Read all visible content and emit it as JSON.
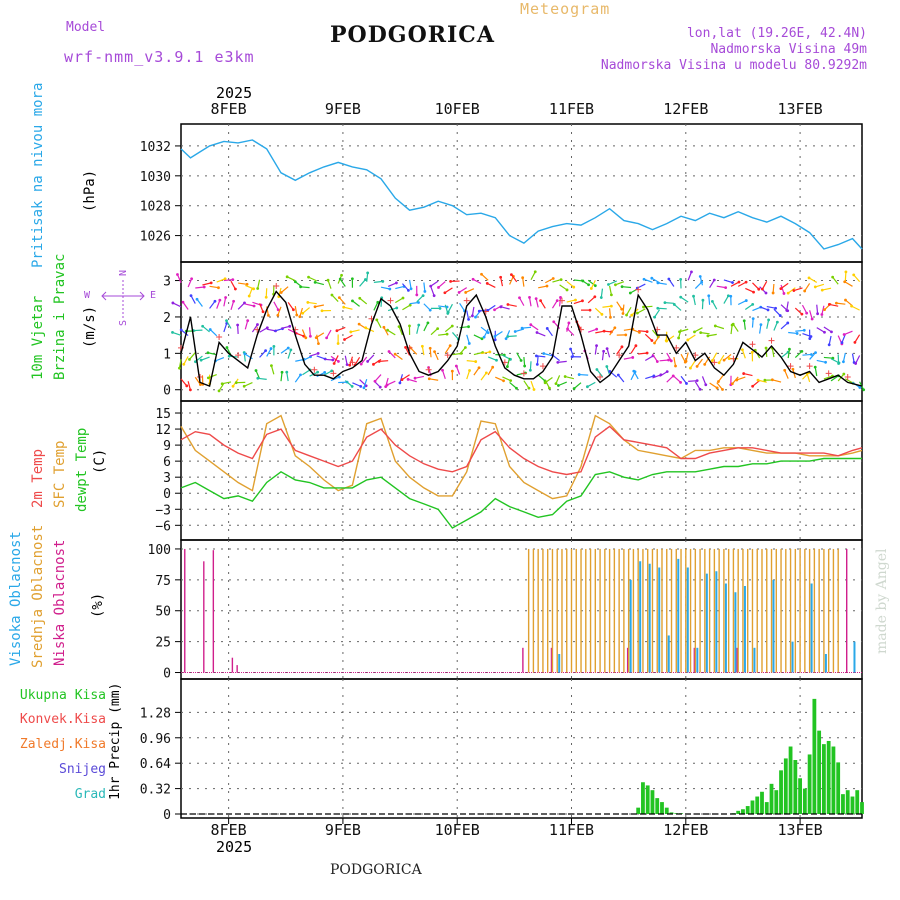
{
  "header": {
    "model_label": "Model",
    "model_name": "wrf-nmm_v3.9.1 e3km",
    "city": "PODGORICA",
    "meteogram": "Meteogram",
    "lonlat": "lon,lat (19.26E, 42.4N)",
    "altitude": "Nadmorska Visina 49m",
    "model_altitude": "Nadmorska Visina u modelu 80.9292m",
    "footer_city": "PODGORICA",
    "watermark": "made by Angel"
  },
  "colors": {
    "pressure": "#2aa8e8",
    "temp2m": "#ee4a4a",
    "sfc": "#e0a030",
    "dewpt": "#22c422",
    "high": "#2aa8e8",
    "mid": "#e0a030",
    "low": "#d01f8c",
    "precip": "#22c422",
    "purple": "#a64ad8",
    "grid": "#666666"
  },
  "time_axis": {
    "year": "2025",
    "days": [
      "8FEB",
      "9FEB",
      "10FEB",
      "11FEB",
      "12FEB",
      "13FEB"
    ]
  },
  "chart_data": [
    {
      "type": "line",
      "name": "pressure",
      "title": "Pritisak na nivou mora",
      "ylabel": "(hPa)",
      "ylim": [
        1024.5,
        1033.2
      ],
      "yticks": [
        1026,
        1028,
        1030,
        1032
      ],
      "series": [
        {
          "name": "Pritisak",
          "color": "#2aa8e8",
          "x": [
            0,
            2,
            4,
            6,
            9,
            12,
            15,
            18,
            21,
            24,
            27,
            30,
            33,
            36,
            39,
            42,
            45,
            48,
            51,
            54,
            57,
            60,
            63,
            66,
            69,
            72,
            75,
            78,
            81,
            84,
            87,
            90,
            93,
            96,
            99,
            102,
            105,
            108,
            111,
            114,
            117,
            120,
            123,
            126,
            129,
            132,
            135,
            138,
            141,
            143
          ],
          "values": [
            1031.8,
            1031.2,
            1031.6,
            1032.0,
            1032.3,
            1032.2,
            1032.4,
            1031.8,
            1030.2,
            1029.7,
            1030.2,
            1030.6,
            1030.9,
            1030.6,
            1030.4,
            1029.8,
            1028.5,
            1027.7,
            1027.9,
            1028.3,
            1028.0,
            1027.4,
            1027.5,
            1027.2,
            1026.0,
            1025.5,
            1026.3,
            1026.6,
            1026.8,
            1026.7,
            1027.2,
            1027.8,
            1027.0,
            1026.8,
            1026.4,
            1026.8,
            1027.3,
            1027.0,
            1027.5,
            1027.2,
            1027.6,
            1027.2,
            1026.9,
            1027.3,
            1026.8,
            1026.2,
            1025.1,
            1025.4,
            1025.8,
            1025.1
          ]
        }
      ]
    },
    {
      "type": "line",
      "name": "wind",
      "title": "10m Vjetar Brzina i Pravac",
      "title_lines": [
        "10m Vjetar",
        "Brzina i Pravac"
      ],
      "ylabel": "(m/s)",
      "compass": [
        "N",
        "W",
        "E",
        "S"
      ],
      "ylim": [
        -0.2,
        3.4
      ],
      "yticks": [
        0,
        1,
        2,
        3
      ],
      "series": [
        {
          "name": "Brzina",
          "color": "#000000",
          "x": [
            0,
            2,
            4,
            6,
            8,
            10,
            12,
            14,
            16,
            18,
            20,
            22,
            24,
            26,
            28,
            30,
            32,
            34,
            36,
            38,
            40,
            42,
            44,
            46,
            48,
            50,
            52,
            54,
            56,
            58,
            60,
            62,
            64,
            66,
            68,
            70,
            72,
            74,
            76,
            78,
            80,
            82,
            84,
            86,
            88,
            90,
            92,
            94,
            96,
            98,
            100,
            102,
            104,
            106,
            108,
            110,
            112,
            114,
            116,
            118,
            120,
            122,
            124,
            126,
            128,
            130,
            132,
            134,
            136,
            138,
            140,
            143
          ],
          "values": [
            1.0,
            2.0,
            0.2,
            0.1,
            1.3,
            1.0,
            0.8,
            0.6,
            1.5,
            2.2,
            2.7,
            2.4,
            1.5,
            0.7,
            0.4,
            0.4,
            0.3,
            0.5,
            0.6,
            0.8,
            1.8,
            2.5,
            2.3,
            1.8,
            1.0,
            0.5,
            0.4,
            0.5,
            0.8,
            1.2,
            2.3,
            2.6,
            2.0,
            1.2,
            0.6,
            0.4,
            0.3,
            0.3,
            0.5,
            0.9,
            2.3,
            2.3,
            1.5,
            0.5,
            0.2,
            0.4,
            0.8,
            1.2,
            2.6,
            2.2,
            1.5,
            1.5,
            1.0,
            1.3,
            0.8,
            1.0,
            0.6,
            0.4,
            0.7,
            1.3,
            1.1,
            0.9,
            1.2,
            0.9,
            0.5,
            0.4,
            0.5,
            0.2,
            0.3,
            0.4,
            0.2,
            0.1
          ]
        }
      ]
    },
    {
      "type": "line",
      "name": "temperature",
      "title_lines": [
        "2m Temp",
        "SFC Temp",
        "dewpt Temp"
      ],
      "ylabel": "(C)",
      "ylim": [
        -8.0,
        16.5
      ],
      "yticks": [
        -6,
        -3,
        0,
        3,
        6,
        9,
        12,
        15
      ],
      "series": [
        {
          "name": "2m Temp",
          "color": "#ee4a4a",
          "x": [
            0,
            3,
            6,
            9,
            12,
            15,
            18,
            21,
            24,
            27,
            30,
            33,
            36,
            39,
            42,
            45,
            48,
            51,
            54,
            57,
            60,
            63,
            66,
            69,
            72,
            75,
            78,
            81,
            84,
            87,
            90,
            93,
            96,
            99,
            102,
            105,
            108,
            111,
            114,
            117,
            120,
            123,
            126,
            129,
            132,
            135,
            138,
            141,
            143
          ],
          "values": [
            10.0,
            11.5,
            11.0,
            9.0,
            7.5,
            6.5,
            11.0,
            12.0,
            8.0,
            7.0,
            6.0,
            5.0,
            6.0,
            10.5,
            12.0,
            9.0,
            7.0,
            5.5,
            4.5,
            4.0,
            5.0,
            10.0,
            11.5,
            8.5,
            6.5,
            5.0,
            4.0,
            3.5,
            4.0,
            10.5,
            12.5,
            10.0,
            9.5,
            9.0,
            8.5,
            6.5,
            6.5,
            7.5,
            8.0,
            8.5,
            8.5,
            8.0,
            7.5,
            7.5,
            7.5,
            7.5,
            7.0,
            8.0,
            8.5
          ]
        },
        {
          "name": "SFC Temp",
          "color": "#e0a030",
          "x": [
            0,
            3,
            6,
            9,
            12,
            15,
            18,
            21,
            24,
            27,
            30,
            33,
            36,
            39,
            42,
            45,
            48,
            51,
            54,
            57,
            60,
            63,
            66,
            69,
            72,
            75,
            78,
            81,
            84,
            87,
            90,
            93,
            96,
            99,
            102,
            105,
            108,
            111,
            114,
            117,
            120,
            123,
            126,
            129,
            132,
            135,
            138,
            141,
            143
          ],
          "values": [
            12.5,
            8.0,
            6.0,
            4.0,
            2.0,
            0.5,
            13.0,
            14.5,
            7.0,
            5.0,
            2.5,
            0.5,
            1.5,
            13.0,
            14.0,
            6.0,
            3.0,
            1.0,
            -0.5,
            -0.5,
            4.0,
            13.5,
            13.0,
            5.0,
            2.0,
            0.5,
            -1.0,
            -0.5,
            5.0,
            14.5,
            13.0,
            10.0,
            8.0,
            7.5,
            7.0,
            6.5,
            8.0,
            8.0,
            8.5,
            8.5,
            8.0,
            7.5,
            7.5,
            7.5,
            7.0,
            7.0,
            7.0,
            7.5,
            8.0
          ]
        },
        {
          "name": "dewpt Temp",
          "color": "#22c422",
          "x": [
            0,
            3,
            6,
            9,
            12,
            15,
            18,
            21,
            24,
            27,
            30,
            33,
            36,
            39,
            42,
            45,
            48,
            51,
            54,
            57,
            60,
            63,
            66,
            69,
            72,
            75,
            78,
            81,
            84,
            87,
            90,
            93,
            96,
            99,
            102,
            105,
            108,
            111,
            114,
            117,
            120,
            123,
            126,
            129,
            132,
            135,
            138,
            141,
            143
          ],
          "values": [
            1.0,
            2.0,
            0.5,
            -1.0,
            -0.5,
            -1.5,
            2.0,
            4.0,
            2.5,
            2.0,
            1.0,
            1.0,
            1.0,
            2.5,
            3.0,
            1.0,
            -1.0,
            -2.0,
            -3.0,
            -6.5,
            -5.0,
            -3.5,
            -1.0,
            -2.5,
            -3.5,
            -4.5,
            -4.0,
            -1.5,
            -0.5,
            3.5,
            4.0,
            3.0,
            2.5,
            3.5,
            4.0,
            4.0,
            4.0,
            4.5,
            5.0,
            5.0,
            5.5,
            5.5,
            6.0,
            6.0,
            6.0,
            6.5,
            6.5,
            6.5,
            6.5
          ]
        }
      ]
    },
    {
      "type": "bar",
      "name": "cloud",
      "title_lines": [
        "Visoka Oblacnost",
        "Srednja Oblacnost",
        "Niska Oblacnost"
      ],
      "ylabel": "(%)",
      "ylim": [
        -2,
        104
      ],
      "yticks": [
        0,
        25,
        50,
        75,
        100
      ],
      "series": [
        {
          "name": "Niska",
          "color": "#d01f8c",
          "x": [
            1,
            5,
            7,
            11,
            12,
            72,
            78,
            94,
            108,
            117,
            140
          ],
          "values": [
            100,
            90,
            99,
            12,
            6,
            20,
            20,
            20,
            20,
            20,
            100
          ]
        },
        {
          "name": "Srednja",
          "color": "#e0a030",
          "x": [
            73,
            74,
            75,
            76,
            77,
            78,
            79,
            80,
            81,
            82,
            83,
            84,
            85,
            86,
            87,
            88,
            89,
            90,
            91,
            92,
            93,
            94,
            95,
            96,
            97,
            98,
            99,
            100,
            101,
            102,
            103,
            104,
            105,
            106,
            107,
            108,
            109,
            110,
            111,
            112,
            113,
            114,
            115,
            116,
            117,
            118,
            119,
            120,
            121,
            122,
            123,
            124,
            125,
            126,
            127,
            128,
            129,
            130,
            131,
            132,
            133,
            134,
            135,
            136,
            137,
            138
          ],
          "values": [
            100,
            100,
            100,
            100,
            100,
            100,
            100,
            100,
            100,
            100,
            100,
            100,
            100,
            100,
            100,
            100,
            100,
            100,
            100,
            100,
            100,
            100,
            100,
            100,
            100,
            100,
            100,
            100,
            100,
            100,
            100,
            100,
            100,
            100,
            100,
            100,
            100,
            100,
            100,
            100,
            100,
            100,
            100,
            100,
            100,
            100,
            100,
            100,
            100,
            100,
            100,
            100,
            100,
            100,
            100,
            100,
            100,
            100,
            100,
            100,
            100,
            100,
            100,
            100,
            100,
            100
          ]
        },
        {
          "name": "Visoka",
          "color": "#2aa8e8",
          "x": [
            79,
            94,
            96,
            98,
            100,
            102,
            104,
            106,
            108,
            110,
            112,
            114,
            116,
            118,
            120,
            124,
            128,
            132,
            135,
            141
          ],
          "values": [
            15,
            75,
            90,
            88,
            85,
            30,
            92,
            85,
            20,
            80,
            82,
            72,
            65,
            70,
            20,
            75,
            25,
            72,
            15,
            25
          ]
        }
      ]
    },
    {
      "type": "bar",
      "name": "precip",
      "ylabel": "1hr Precip (mm)",
      "legend": [
        "Ukupna Kisa",
        "Konvek.Kisa",
        "Zaledj.Kisa",
        "Snijeg",
        "Grad"
      ],
      "legend_colors": [
        "#22c422",
        "#ee4a4a",
        "#f07a2a",
        "#5a4ad8",
        "#2ab8b8"
      ],
      "ylim": [
        0,
        1.65
      ],
      "yticks": [
        0,
        0.32,
        0.64,
        0.96,
        1.28
      ],
      "series": [
        {
          "name": "Ukupna Kisa",
          "color": "#22c422",
          "x": [
            96,
            97,
            98,
            99,
            100,
            101,
            102,
            103,
            104,
            105,
            116,
            117,
            118,
            119,
            120,
            121,
            122,
            123,
            124,
            125,
            126,
            127,
            128,
            129,
            130,
            131,
            132,
            133,
            134,
            135,
            136,
            137,
            138,
            139,
            140,
            141,
            142,
            143
          ],
          "values": [
            0.08,
            0.4,
            0.36,
            0.3,
            0.2,
            0.15,
            0.08,
            0.02,
            0.01,
            0.01,
            0.01,
            0.04,
            0.06,
            0.1,
            0.17,
            0.22,
            0.28,
            0.15,
            0.38,
            0.3,
            0.55,
            0.7,
            0.85,
            0.68,
            0.45,
            0.32,
            0.75,
            1.45,
            1.05,
            0.88,
            0.92,
            0.85,
            0.65,
            0.25,
            0.3,
            0.22,
            0.3,
            0.15
          ]
        }
      ]
    }
  ]
}
